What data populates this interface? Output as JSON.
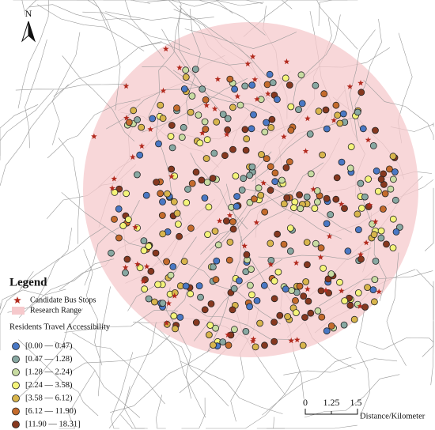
{
  "north": "N",
  "legend": {
    "title": "Legend",
    "items": [
      {
        "label": "Candidate Bus Stops",
        "color": "#b22a1e"
      },
      {
        "label": "Research Range",
        "color": "#f6c9cc"
      }
    ],
    "accessibility_title": "Residents Travel Accessibility",
    "classes": [
      {
        "label": "[0.00 — 0.47)",
        "color": "#4a78c4"
      },
      {
        "label": "[0.47 — 1.28)",
        "color": "#88a8a2"
      },
      {
        "label": "[1.28 — 2.24)",
        "color": "#c8dca2"
      },
      {
        "label": "[2.24 — 3.58)",
        "color": "#f4f47a"
      },
      {
        "label": "[3.58 — 6.12)",
        "color": "#d8b54c"
      },
      {
        "label": "[6.12 — 11.90)",
        "color": "#c46b2c"
      },
      {
        "label": "[11.90 — 18.31]",
        "color": "#86381f"
      }
    ]
  },
  "scale_bar": {
    "labels": [
      "0",
      "1.25",
      "1.5"
    ],
    "unit": "Distance/Kilometer"
  }
}
